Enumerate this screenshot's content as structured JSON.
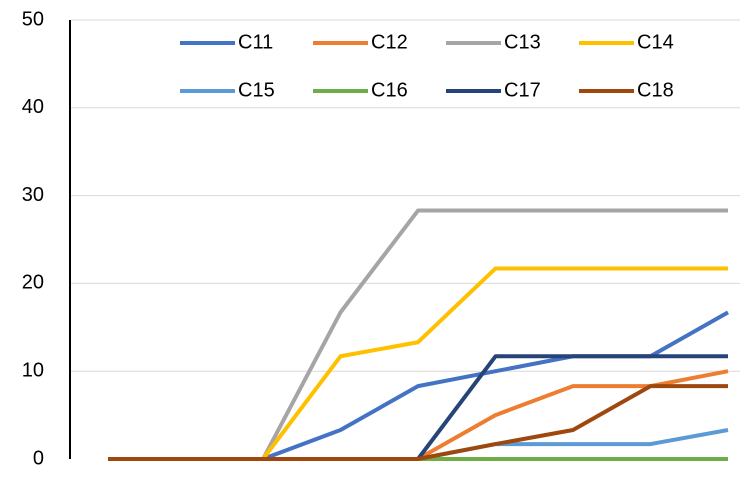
{
  "chart_data": {
    "type": "line",
    "categories": [
      null,
      null,
      null,
      null,
      null,
      null,
      null,
      null,
      null
    ],
    "series": [
      {
        "name": "C11",
        "color": "#4472c4",
        "values": [
          0,
          0,
          0,
          3.3,
          8.3,
          10,
          11.7,
          11.7,
          16.7
        ]
      },
      {
        "name": "C12",
        "color": "#ed7d31",
        "values": [
          0,
          0,
          0,
          0,
          0,
          5,
          8.3,
          8.3,
          10
        ]
      },
      {
        "name": "C13",
        "color": "#a5a5a5",
        "values": [
          0,
          0,
          0,
          16.7,
          28.3,
          28.3,
          28.3,
          28.3,
          28.3
        ]
      },
      {
        "name": "C14",
        "color": "#ffc000",
        "values": [
          0,
          0,
          0,
          11.7,
          13.3,
          21.7,
          21.7,
          21.7,
          21.7
        ]
      },
      {
        "name": "C15",
        "color": "#5b9bd5",
        "values": [
          0,
          0,
          0,
          0,
          0,
          1.7,
          1.7,
          1.7,
          3.3
        ]
      },
      {
        "name": "C16",
        "color": "#70ad47",
        "values": [
          0,
          0,
          0,
          0,
          0,
          0,
          0,
          0,
          0
        ]
      },
      {
        "name": "C17",
        "color": "#264478",
        "values": [
          0,
          0,
          0,
          0,
          0,
          11.7,
          11.7,
          11.7,
          11.7
        ]
      },
      {
        "name": "C18",
        "color": "#9e480e",
        "values": [
          0,
          0,
          0,
          0,
          0,
          1.7,
          3.3,
          8.3,
          8.3
        ]
      }
    ],
    "ylim": [
      0,
      50
    ],
    "yticks": [
      0,
      10,
      20,
      30,
      40,
      50
    ],
    "grid": true,
    "legend": "top"
  }
}
